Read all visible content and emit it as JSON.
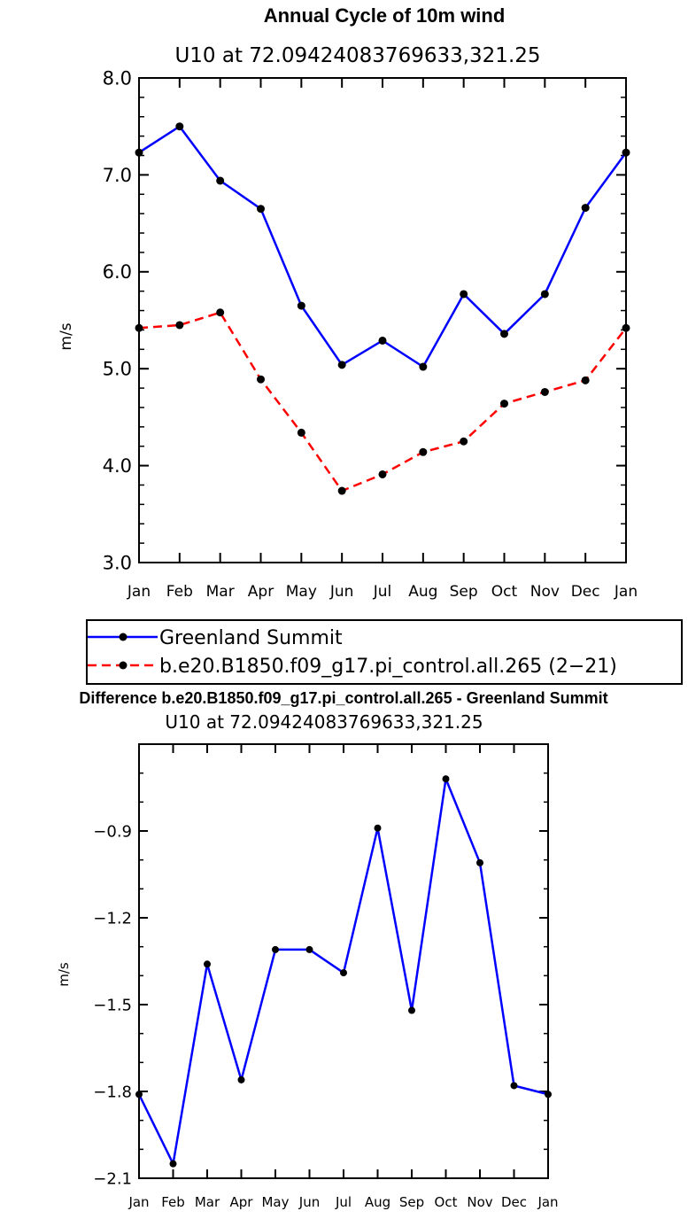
{
  "chart_data": [
    {
      "type": "line",
      "title": "Annual Cycle of 10m wind",
      "subtitle": "U10  at  72.09424083769633,321.25",
      "xlabel": "",
      "ylabel": "m/s",
      "categories": [
        "Jan",
        "Feb",
        "Mar",
        "Apr",
        "May",
        "Jun",
        "Jul",
        "Aug",
        "Sep",
        "Oct",
        "Nov",
        "Dec",
        "Jan"
      ],
      "ylim": [
        3.0,
        8.0
      ],
      "yticks": [
        3.0,
        4.0,
        5.0,
        6.0,
        7.0,
        8.0
      ],
      "ytick_labels": [
        "3.0",
        "4.0",
        "5.0",
        "6.0",
        "7.0",
        "8.0"
      ],
      "series": [
        {
          "name": "Greenland Summit",
          "color": "#0000ff",
          "dash": "solid",
          "values": [
            7.23,
            7.5,
            6.94,
            6.65,
            5.65,
            5.04,
            5.29,
            5.02,
            5.77,
            5.36,
            5.77,
            6.66,
            7.23
          ]
        },
        {
          "name": "b.e20.B1850.f09_g17.pi_control.all.265 (2−21)",
          "color": "#ff0000",
          "dash": "dashed",
          "values": [
            5.42,
            5.45,
            5.58,
            4.89,
            4.34,
            3.74,
            3.91,
            4.14,
            4.25,
            4.64,
            4.76,
            4.88,
            5.42
          ]
        }
      ],
      "legend": "below",
      "grid": false
    },
    {
      "type": "line",
      "title": "Difference b.e20.B1850.f09_g17.pi_control.all.265 - Greenland Summit",
      "subtitle": "U10  at  72.09424083769633,321.25",
      "xlabel": "",
      "ylabel": "m/s",
      "categories": [
        "Jan",
        "Feb",
        "Mar",
        "Apr",
        "May",
        "Jun",
        "Jul",
        "Aug",
        "Sep",
        "Oct",
        "Nov",
        "Dec",
        "Jan"
      ],
      "ylim": [
        -2.1,
        -0.6
      ],
      "yticks": [
        -2.1,
        -1.8,
        -1.5,
        -1.2,
        -0.9
      ],
      "ytick_labels": [
        "−2.1",
        "−1.8",
        "−1.5",
        "−1.2",
        "−0.9"
      ],
      "series": [
        {
          "name": "",
          "color": "#0000ff",
          "dash": "solid",
          "values": [
            -1.81,
            -2.05,
            -1.36,
            -1.76,
            -1.31,
            -1.31,
            -1.39,
            -0.89,
            -1.52,
            -0.72,
            -1.01,
            -1.78,
            -1.81
          ]
        }
      ],
      "grid": false
    }
  ]
}
